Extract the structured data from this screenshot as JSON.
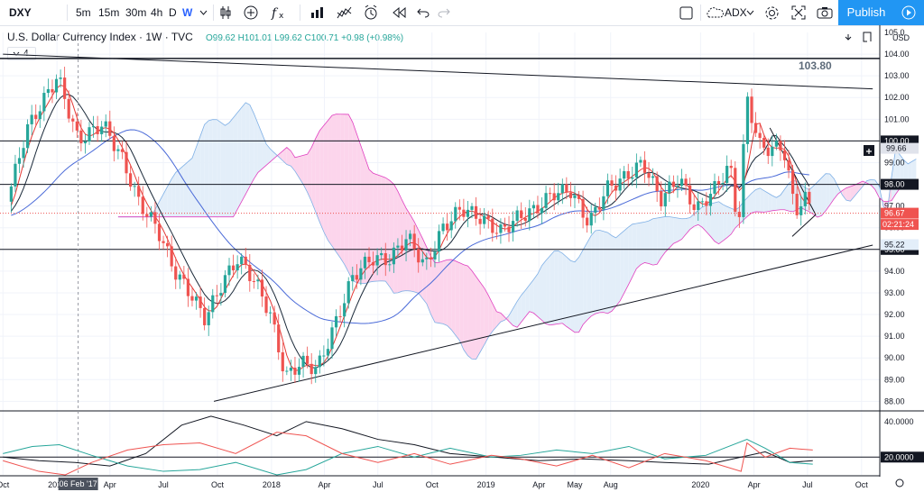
{
  "toolbar": {
    "symbol": "DXY",
    "intervals": [
      "5m",
      "15m",
      "30m",
      "4h",
      "D",
      "W"
    ],
    "active_interval": "W",
    "indicator_search": "ADX",
    "publish_label": "Publish"
  },
  "legend": {
    "title": "U.S. Dollar Currency Index · 1W · TVC",
    "indicator_count": "4",
    "ohlc": "O99.62  H101.01  L99.62  C100.71  +0.98 (+0.98%)",
    "up_color": "#26a69a",
    "down_color": "#ef5350"
  },
  "chart_data": [
    {
      "type": "candlestick",
      "title": "U.S. Dollar Currency Index · 1W · TVC",
      "ylabel": "USD",
      "ylim": [
        87.6,
        105.0
      ],
      "price_ticks": [
        "105.0",
        "104.00",
        "103.00",
        "102.00",
        "101.00",
        "100.00",
        "99.00",
        "98.00",
        "97.00",
        "96.00",
        "95.00",
        "94.00",
        "93.00",
        "92.00",
        "91.00",
        "90.00",
        "89.00",
        "88.00"
      ],
      "x_ticks": [
        "Oct",
        "2017",
        "Apr",
        "Jul",
        "Oct",
        "2018",
        "Apr",
        "Jul",
        "Oct",
        "2019",
        "Apr",
        "May",
        "Aug",
        "2020",
        "Apr",
        "Jul",
        "Oct"
      ],
      "x_tick_dates": [
        "2016-10-01",
        "2017-01-01",
        "2017-04-01",
        "2017-07-01",
        "2017-10-01",
        "2018-01-01",
        "2018-04-01",
        "2018-07-01",
        "2018-10-01",
        "2019-01-01",
        "2019-04-01",
        "2019-06-01",
        "2019-08-01",
        "2020-01-01",
        "2020-04-01",
        "2020-07-01",
        "2020-10-01"
      ],
      "crosshair_date_label": "06 Feb '17",
      "crosshair_date": "2017-02-06",
      "series": [
        {
          "name": "Price",
          "points": [
            [
              "2016-10-01",
              96.5
            ],
            [
              "2016-11-10",
              100.5
            ],
            [
              "2017-01-02",
              103.0
            ],
            [
              "2017-02-06",
              100.0
            ],
            [
              "2017-03-20",
              100.8
            ],
            [
              "2017-04-20",
              99.3
            ],
            [
              "2017-05-20",
              97.2
            ],
            [
              "2017-06-20",
              96.0
            ],
            [
              "2017-07-20",
              94.0
            ],
            [
              "2017-08-20",
              92.8
            ],
            [
              "2017-09-10",
              91.8
            ],
            [
              "2017-10-10",
              93.5
            ],
            [
              "2017-11-05",
              94.6
            ],
            [
              "2017-12-05",
              93.5
            ],
            [
              "2017-12-30",
              92.0
            ],
            [
              "2018-01-25",
              89.1
            ],
            [
              "2018-02-20",
              89.8
            ],
            [
              "2018-03-20",
              89.5
            ],
            [
              "2018-04-20",
              91.6
            ],
            [
              "2018-05-20",
              93.8
            ],
            [
              "2018-06-20",
              94.6
            ],
            [
              "2018-07-20",
              94.5
            ],
            [
              "2018-08-20",
              95.6
            ],
            [
              "2018-09-20",
              94.2
            ],
            [
              "2018-10-20",
              96.0
            ],
            [
              "2018-11-20",
              96.9
            ],
            [
              "2018-12-20",
              96.5
            ],
            [
              "2019-01-25",
              95.8
            ],
            [
              "2019-02-25",
              96.5
            ],
            [
              "2019-03-25",
              96.8
            ],
            [
              "2019-04-25",
              97.6
            ],
            [
              "2019-05-25",
              97.7
            ],
            [
              "2019-06-25",
              96.2
            ],
            [
              "2019-07-25",
              97.8
            ],
            [
              "2019-08-25",
              98.3
            ],
            [
              "2019-09-25",
              99.0
            ],
            [
              "2019-10-25",
              97.3
            ],
            [
              "2019-11-25",
              98.3
            ],
            [
              "2019-12-25",
              96.8
            ],
            [
              "2020-01-25",
              97.8
            ],
            [
              "2020-02-20",
              98.9
            ],
            [
              "2020-03-05",
              95.9
            ],
            [
              "2020-03-20",
              102.0
            ],
            [
              "2020-04-10",
              99.8
            ],
            [
              "2020-04-30",
              99.6
            ],
            [
              "2020-05-20",
              99.8
            ],
            [
              "2020-06-10",
              96.8
            ],
            [
              "2020-06-30",
              97.4
            ],
            [
              "2020-07-10",
              96.67
            ]
          ]
        }
      ],
      "levels": [
        {
          "label": "103.80",
          "value": 103.8
        },
        {
          "label": "100.00",
          "value": 100.0
        },
        {
          "label": "98.00",
          "value": 98.0
        },
        {
          "label": "95.00",
          "value": 95.0
        }
      ],
      "price_labels": [
        {
          "label": "99.66",
          "value": 99.66
        },
        {
          "label": "96.67",
          "value": 96.67
        },
        {
          "label": "02:21:24",
          "value": 96.15
        },
        {
          "label": "95.22",
          "value": 95.22
        }
      ],
      "trendlines": [
        {
          "from": [
            "2016-10-01",
            104.0
          ],
          "to": [
            "2020-10-20",
            102.4
          ]
        },
        {
          "from": [
            "2017-09-25",
            88.0
          ],
          "to": [
            "2020-10-20",
            95.2
          ]
        },
        {
          "from": [
            "2020-06-05",
            95.6
          ],
          "to": [
            "2020-07-15",
            96.6
          ]
        },
        {
          "from": [
            "2020-04-28",
            100.6
          ],
          "to": [
            "2020-07-15",
            96.6
          ]
        }
      ]
    },
    {
      "type": "line",
      "title": "",
      "ylabel": "",
      "ylim": [
        10,
        45
      ],
      "y_ticks": [
        "40.0000",
        "20.0000"
      ],
      "levels": [
        {
          "label": "20.0000",
          "value": 20
        }
      ],
      "series": [
        {
          "name": "ADX",
          "color": "#131722",
          "points": [
            [
              "2016-10-01",
              20
            ],
            [
              "2016-12-01",
              18
            ],
            [
              "2017-02-01",
              17
            ],
            [
              "2017-04-01",
              15
            ],
            [
              "2017-06-01",
              22
            ],
            [
              "2017-08-01",
              38
            ],
            [
              "2017-09-20",
              43
            ],
            [
              "2017-11-15",
              38
            ],
            [
              "2018-01-10",
              32
            ],
            [
              "2018-03-01",
              40
            ],
            [
              "2018-05-01",
              36
            ],
            [
              "2018-07-01",
              30
            ],
            [
              "2018-09-01",
              27
            ],
            [
              "2018-11-01",
              22
            ],
            [
              "2019-01-15",
              20
            ],
            [
              "2019-04-01",
              18
            ],
            [
              "2019-06-15",
              19
            ],
            [
              "2019-09-01",
              18
            ],
            [
              "2019-11-01",
              17
            ],
            [
              "2020-01-15",
              16
            ],
            [
              "2020-03-10",
              20
            ],
            [
              "2020-04-20",
              23
            ],
            [
              "2020-06-01",
              17
            ],
            [
              "2020-07-10",
              18
            ]
          ]
        },
        {
          "name": "+DI",
          "color": "#26a69a",
          "points": [
            [
              "2016-10-01",
              22
            ],
            [
              "2016-11-20",
              26
            ],
            [
              "2017-01-05",
              27
            ],
            [
              "2017-03-01",
              21
            ],
            [
              "2017-05-01",
              15
            ],
            [
              "2017-07-01",
              12
            ],
            [
              "2017-09-01",
              13
            ],
            [
              "2017-11-01",
              17
            ],
            [
              "2018-01-10",
              10
            ],
            [
              "2018-03-01",
              13
            ],
            [
              "2018-05-01",
              22
            ],
            [
              "2018-07-01",
              26
            ],
            [
              "2018-09-01",
              20
            ],
            [
              "2018-11-01",
              25
            ],
            [
              "2019-01-10",
              20
            ],
            [
              "2019-03-01",
              21
            ],
            [
              "2019-05-01",
              24
            ],
            [
              "2019-07-01",
              22
            ],
            [
              "2019-09-01",
              26
            ],
            [
              "2019-11-01",
              19
            ],
            [
              "2020-01-10",
              21
            ],
            [
              "2020-03-20",
              30
            ],
            [
              "2020-04-20",
              25
            ],
            [
              "2020-06-01",
              17
            ],
            [
              "2020-07-10",
              16
            ]
          ]
        },
        {
          "name": "-DI",
          "color": "#ef5350",
          "points": [
            [
              "2016-10-01",
              18
            ],
            [
              "2016-12-01",
              12
            ],
            [
              "2017-01-15",
              10
            ],
            [
              "2017-03-01",
              17
            ],
            [
              "2017-05-01",
              24
            ],
            [
              "2017-07-01",
              27
            ],
            [
              "2017-09-01",
              28
            ],
            [
              "2017-11-01",
              22
            ],
            [
              "2018-01-10",
              34
            ],
            [
              "2018-03-01",
              32
            ],
            [
              "2018-05-01",
              22
            ],
            [
              "2018-07-01",
              17
            ],
            [
              "2018-09-01",
              22
            ],
            [
              "2018-11-01",
              16
            ],
            [
              "2019-01-10",
              21
            ],
            [
              "2019-03-01",
              19
            ],
            [
              "2019-05-01",
              15
            ],
            [
              "2019-07-01",
              21
            ],
            [
              "2019-09-01",
              14
            ],
            [
              "2019-11-01",
              22
            ],
            [
              "2020-01-10",
              18
            ],
            [
              "2020-03-10",
              12
            ],
            [
              "2020-03-20",
              28
            ],
            [
              "2020-04-20",
              20
            ],
            [
              "2020-06-01",
              25
            ],
            [
              "2020-07-10",
              24
            ]
          ]
        }
      ]
    }
  ]
}
